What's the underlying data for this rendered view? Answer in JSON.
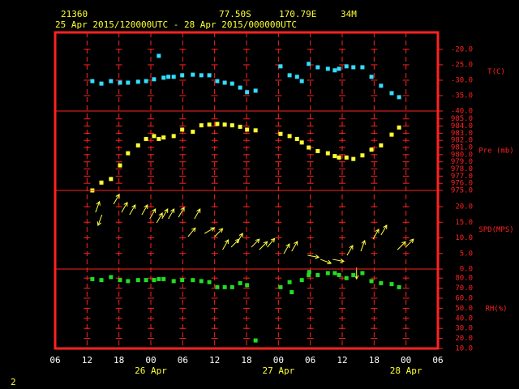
{
  "header": {
    "station": "21360",
    "lat": "77.50S",
    "lon": "170.79E",
    "elev": "34M",
    "period": "25 Apr 2015/120000UTC - 28 Apr 2015/000000UTC"
  },
  "page_number": "2",
  "x_axis": {
    "xlim": [
      6,
      78
    ],
    "xticks": [
      {
        "value": 6,
        "label": "06"
      },
      {
        "value": 12,
        "label": "12"
      },
      {
        "value": 18,
        "label": "18"
      },
      {
        "value": 24,
        "label": "00"
      },
      {
        "value": 30,
        "label": "06"
      },
      {
        "value": 36,
        "label": "12"
      },
      {
        "value": 42,
        "label": "18"
      },
      {
        "value": 48,
        "label": "00"
      },
      {
        "value": 54,
        "label": "06"
      },
      {
        "value": 60,
        "label": "12"
      },
      {
        "value": 66,
        "label": "18"
      },
      {
        "value": 72,
        "label": "00"
      },
      {
        "value": 78,
        "label": "06"
      }
    ],
    "date_labels": [
      {
        "value": 24,
        "label": "26 Apr"
      },
      {
        "value": 48,
        "label": "27 Apr"
      },
      {
        "value": 72,
        "label": "28 Apr"
      }
    ]
  },
  "chart_data": [
    {
      "type": "scatter",
      "name": "T(C)",
      "color": "#33ddff",
      "ylim": [
        -40,
        -14.5
      ],
      "yticks": [
        {
          "value": -20,
          "label": "-20.0"
        },
        {
          "value": -25,
          "label": "-25.0"
        },
        {
          "value": -30,
          "label": "-30.0"
        },
        {
          "value": -35,
          "label": "-35.0"
        },
        {
          "value": -40,
          "label": "-40.0"
        }
      ],
      "x": [
        13,
        14.7,
        16.5,
        18.2,
        19.7,
        21.6,
        23.1,
        24.6,
        25.5,
        26.4,
        27.3,
        28.3,
        29.9,
        31.9,
        33.5,
        35,
        36.5,
        37.9,
        39.3,
        40.8,
        42.1,
        43.7,
        48.4,
        50.1,
        51.5,
        52.4,
        53.7,
        55.4,
        57.3,
        58.6,
        59.4,
        60.8,
        62.1,
        63.8,
        65.5,
        67.3,
        69.3,
        70.7
      ],
      "values": [
        -30.3,
        -31.1,
        -30.3,
        -30.8,
        -30.8,
        -30.5,
        -30.3,
        -29.7,
        -22.1,
        -29.2,
        -28.9,
        -28.9,
        -28.4,
        -28.2,
        -28.4,
        -28.4,
        -30.3,
        -30.8,
        -31.1,
        -32.4,
        -33.9,
        -33.4,
        -25.5,
        -28.4,
        -28.9,
        -30.3,
        -24.7,
        -25.8,
        -26.3,
        -26.8,
        -26.3,
        -25.5,
        -25.8,
        -25.8,
        -28.9,
        -31.8,
        -34.2,
        -35.5
      ]
    },
    {
      "type": "scatter",
      "name": "Pre (mb)",
      "color": "#ffff33",
      "ylim": [
        975,
        986.1
      ],
      "yticks": [
        {
          "value": 975,
          "label": "975.0"
        },
        {
          "value": 976,
          "label": "976.0"
        },
        {
          "value": 977,
          "label": "977.0"
        },
        {
          "value": 978,
          "label": "978.0"
        },
        {
          "value": 979,
          "label": "979.0"
        },
        {
          "value": 980,
          "label": "980.0"
        },
        {
          "value": 981,
          "label": "981.0"
        },
        {
          "value": 982,
          "label": "982.0"
        },
        {
          "value": 983,
          "label": "983.0"
        },
        {
          "value": 984,
          "label": "984.0"
        },
        {
          "value": 985,
          "label": "985.0"
        }
      ],
      "x": [
        13,
        14.7,
        16.5,
        18.2,
        19.7,
        21.6,
        23.1,
        24.6,
        25.5,
        26.4,
        28.3,
        29.9,
        31.9,
        33.5,
        35,
        36.5,
        37.9,
        39.3,
        40.8,
        42.1,
        43.7,
        48.4,
        50.1,
        51.5,
        52.4,
        53.7,
        55.4,
        57.3,
        58.6,
        59.4,
        60.8,
        62.1,
        63.8,
        65.5,
        67.3,
        69.3,
        70.7
      ],
      "values": [
        975.0,
        976.1,
        976.6,
        978.5,
        980.2,
        981.3,
        982.2,
        982.6,
        982.2,
        982.4,
        982.6,
        983.5,
        983.2,
        984.1,
        984.2,
        984.3,
        984.2,
        984.1,
        983.9,
        983.5,
        983.4,
        982.9,
        982.6,
        982.2,
        981.7,
        981.0,
        980.5,
        980.2,
        979.8,
        979.6,
        979.6,
        979.4,
        979.9,
        980.7,
        981.3,
        982.8,
        983.8
      ]
    },
    {
      "type": "wind",
      "name": "SPD(MPS)",
      "color": "#ffff44",
      "ylim": [
        0,
        25.2
      ],
      "yticks": [
        {
          "value": 20,
          "label": "20.0"
        },
        {
          "value": 15,
          "label": "15.0"
        },
        {
          "value": 10,
          "label": "10.0"
        },
        {
          "value": 5,
          "label": "5.0"
        },
        {
          "value": 0,
          "label": "0.0"
        }
      ],
      "x": [
        13.6,
        14.8,
        17,
        18.5,
        20,
        22.3,
        23.8,
        25.1,
        26.1,
        27.3,
        29.2,
        31,
        32.2,
        34.1,
        36,
        37.5,
        39.1,
        40.2,
        42.9,
        44.4,
        45.9,
        49,
        50.5,
        53.5,
        55.9,
        58.2,
        60.9,
        62.7,
        63.5,
        65.8,
        67.3,
        70.4,
        71.9
      ],
      "values": [
        18.2,
        17.4,
        20.8,
        18.2,
        17.4,
        17.4,
        16.1,
        14.8,
        16.1,
        16.1,
        16.6,
        10.4,
        16.1,
        11.4,
        10.4,
        6.2,
        7.0,
        8.3,
        7.0,
        6.2,
        7.0,
        4.9,
        5.7,
        4.4,
        3.1,
        3.1,
        4.4,
        0.5,
        5.7,
        9.6,
        10.9,
        6.2,
        7.0
      ],
      "directions": [
        20,
        200,
        30,
        30,
        30,
        30,
        30,
        30,
        30,
        30,
        30,
        40,
        30,
        60,
        45,
        30,
        45,
        30,
        45,
        45,
        40,
        30,
        30,
        100,
        110,
        100,
        30,
        180,
        20,
        30,
        30,
        45,
        45
      ]
    },
    {
      "type": "scatter",
      "name": "RH(%)",
      "color": "#22dd22",
      "ylim": [
        10,
        89
      ],
      "yticks": [
        {
          "value": 80,
          "label": "80.0"
        },
        {
          "value": 70,
          "label": "70.0"
        },
        {
          "value": 60,
          "label": "60.0"
        },
        {
          "value": 50,
          "label": "50.0"
        },
        {
          "value": 40,
          "label": "40.0"
        },
        {
          "value": 30,
          "label": "30.0"
        },
        {
          "value": 20,
          "label": "20.0"
        },
        {
          "value": 10,
          "label": "10.0"
        }
      ],
      "x": [
        13,
        14.7,
        16.5,
        18.2,
        19.7,
        21.6,
        23.1,
        24.6,
        25.5,
        26.4,
        28.3,
        29.9,
        31.9,
        33.5,
        35,
        36.5,
        37.9,
        39.3,
        40.8,
        42.1,
        43.7,
        48.4,
        50.1,
        50.5,
        52.4,
        53.7,
        53.8,
        55.4,
        57.3,
        58.6,
        59.4,
        60.8,
        62.1,
        63.8,
        65.5,
        67.3,
        69.3,
        70.7
      ],
      "values": [
        79,
        78,
        81,
        78,
        77,
        78,
        78,
        78,
        79,
        79,
        77,
        78,
        78,
        77,
        76,
        71,
        71,
        71,
        75,
        73,
        18,
        71,
        76,
        66,
        78,
        83,
        86,
        83,
        85,
        85,
        83,
        80,
        83,
        85,
        77,
        75,
        74,
        71
      ]
    }
  ]
}
